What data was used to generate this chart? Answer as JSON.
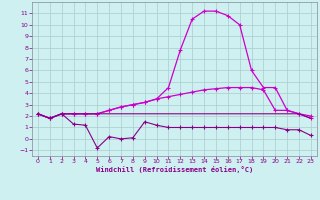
{
  "x_values": [
    0,
    1,
    2,
    3,
    4,
    5,
    6,
    7,
    8,
    9,
    10,
    11,
    12,
    13,
    14,
    15,
    16,
    17,
    18,
    19,
    20,
    21,
    22,
    23
  ],
  "line_peak": [
    2.2,
    1.8,
    2.2,
    2.2,
    2.2,
    2.2,
    2.5,
    2.8,
    3.0,
    3.2,
    3.5,
    4.5,
    7.8,
    10.5,
    11.2,
    11.2,
    10.8,
    10.0,
    6.0,
    4.5,
    4.5,
    2.5,
    2.2,
    2.0
  ],
  "line_max": [
    2.2,
    1.8,
    2.2,
    2.2,
    2.2,
    2.2,
    2.5,
    2.8,
    3.0,
    3.2,
    3.5,
    3.7,
    3.9,
    4.1,
    4.3,
    4.4,
    4.5,
    4.5,
    4.5,
    4.3,
    2.5,
    2.5,
    2.2,
    1.8
  ],
  "line_flat": [
    2.2,
    1.8,
    2.2,
    2.2,
    2.2,
    2.2,
    2.2,
    2.2,
    2.2,
    2.2,
    2.2,
    2.2,
    2.2,
    2.2,
    2.2,
    2.2,
    2.2,
    2.2,
    2.2,
    2.2,
    2.2,
    2.2,
    2.2,
    1.8
  ],
  "line_low": [
    2.2,
    1.8,
    2.2,
    1.3,
    1.2,
    -0.8,
    0.2,
    0.0,
    0.1,
    1.5,
    1.2,
    1.0,
    1.0,
    1.0,
    1.0,
    1.0,
    1.0,
    1.0,
    1.0,
    1.0,
    1.0,
    0.8,
    0.8,
    0.3
  ],
  "line_color_bright": "#cc00cc",
  "line_color_dark": "#880088",
  "bg_color": "#cff0f0",
  "grid_color": "#aacccc",
  "xlabel": "Windchill (Refroidissement éolien,°C)",
  "xlim": [
    -0.5,
    23.5
  ],
  "ylim": [
    -1.5,
    12
  ],
  "xticks": [
    0,
    1,
    2,
    3,
    4,
    5,
    6,
    7,
    8,
    9,
    10,
    11,
    12,
    13,
    14,
    15,
    16,
    17,
    18,
    19,
    20,
    21,
    22,
    23
  ],
  "yticks": [
    -1,
    0,
    1,
    2,
    3,
    4,
    5,
    6,
    7,
    8,
    9,
    10,
    11
  ]
}
